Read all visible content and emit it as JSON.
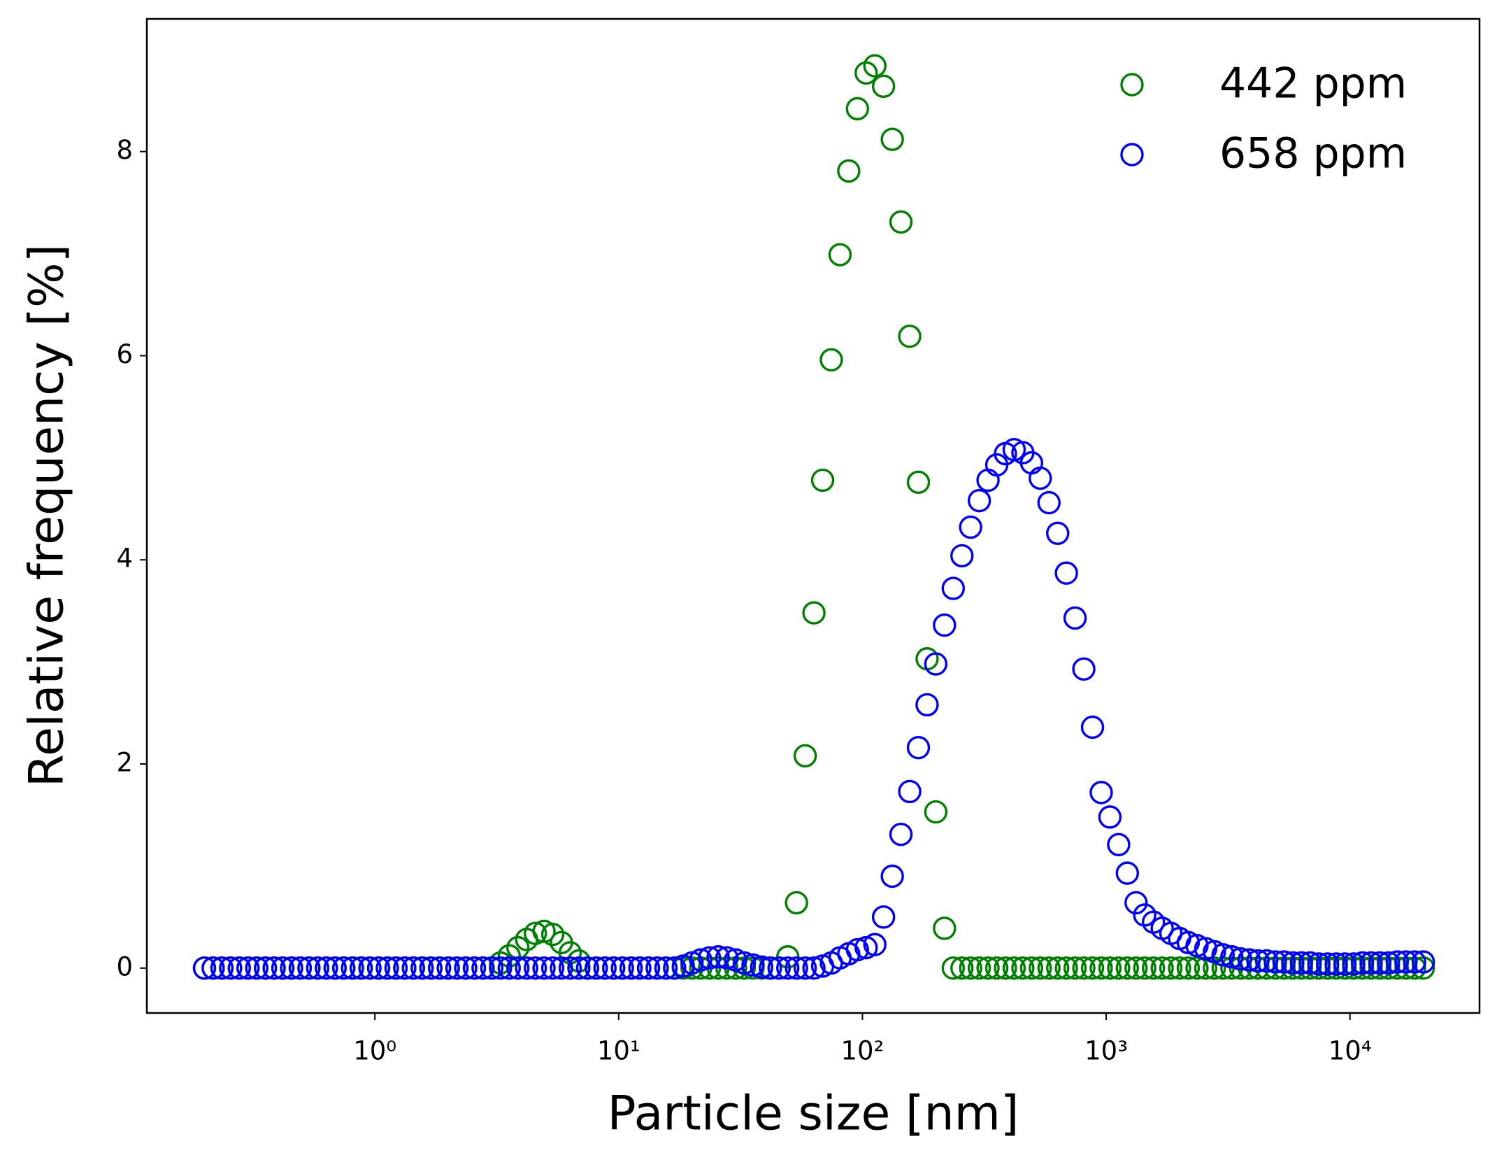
{
  "chart_data": {
    "type": "scatter",
    "xlabel": "Particle size [nm]",
    "ylabel": "Relative frequency [%]",
    "xscale": "log",
    "legend": "upper right",
    "xlim": [
      0.116,
      34000
    ],
    "ylim": [
      -0.44,
      9.3
    ],
    "xticks": [
      {
        "value": 1,
        "label": "10⁰"
      },
      {
        "value": 10,
        "label": "10¹"
      },
      {
        "value": 100,
        "label": "10²"
      },
      {
        "value": 1000,
        "label": "10³"
      },
      {
        "value": 10000,
        "label": "10⁴"
      }
    ],
    "yticks": [
      0,
      2,
      4,
      6,
      8
    ],
    "x": [
      0.2,
      0.2171,
      0.2358,
      0.256,
      0.2779,
      0.3017,
      0.3276,
      0.3557,
      0.3861,
      0.4192,
      0.4552,
      0.4942,
      0.5365,
      0.5825,
      0.6325,
      0.6867,
      0.7455,
      0.8094,
      0.8788,
      0.9541,
      1.036,
      1.125,
      1.221,
      1.326,
      1.439,
      1.563,
      1.697,
      1.842,
      2,
      2.171,
      2.358,
      2.56,
      2.779,
      3.017,
      3.276,
      3.557,
      3.861,
      4.192,
      4.552,
      4.942,
      5.365,
      5.825,
      6.325,
      6.867,
      7.455,
      8.094,
      8.788,
      9.541,
      10.36,
      11.25,
      12.21,
      13.26,
      14.39,
      15.63,
      16.97,
      18.42,
      20,
      21.71,
      23.58,
      25.6,
      27.79,
      30.17,
      32.76,
      35.57,
      38.61,
      41.92,
      45.52,
      49.42,
      53.65,
      58.25,
      63.25,
      68.67,
      74.55,
      80.94,
      87.88,
      95.41,
      103.6,
      112.5,
      122.1,
      132.6,
      143.9,
      156.3,
      169.7,
      184.2,
      200,
      217.1,
      235.8,
      256,
      277.9,
      301.7,
      327.6,
      355.7,
      386.1,
      419.2,
      455.2,
      494.2,
      536.5,
      582.5,
      632.5,
      686.7,
      745.5,
      809.4,
      878.8,
      954.1,
      1036,
      1125,
      1221,
      1326,
      1439,
      1563,
      1697,
      1842,
      2000,
      2171,
      2358,
      2560,
      2779,
      3017,
      3276,
      3557,
      3861,
      4192,
      4552,
      4942,
      5365,
      5825,
      6325,
      6867,
      7455,
      8094,
      8788,
      9541,
      10360,
      11250,
      12210,
      13260,
      14390,
      15630,
      16970,
      18420,
      20000
    ],
    "series": [
      {
        "name": "442 ppm",
        "color": "#008000",
        "values": [
          0,
          0,
          0,
          0,
          0,
          0,
          0,
          0,
          0,
          0,
          0,
          0,
          0,
          0,
          0,
          0,
          0,
          0,
          0,
          0,
          0,
          0,
          0,
          0,
          0,
          0,
          0,
          0,
          0,
          0,
          0,
          0,
          0,
          0,
          0.05,
          0.12,
          0.2,
          0.28,
          0.34,
          0.36,
          0.33,
          0.25,
          0.15,
          0.07,
          0,
          0,
          0,
          0,
          0,
          0,
          0,
          0,
          0,
          0,
          0,
          0,
          0,
          0,
          0,
          0,
          0,
          0,
          0,
          0,
          0,
          0,
          0,
          0.11,
          0.64,
          2.08,
          3.48,
          4.78,
          5.96,
          6.99,
          7.81,
          8.42,
          8.77,
          8.84,
          8.64,
          8.12,
          7.31,
          6.19,
          4.76,
          3.03,
          1.53,
          0.39,
          0,
          0,
          0,
          0,
          0,
          0,
          0,
          0,
          0,
          0,
          0,
          0,
          0,
          0,
          0,
          0,
          0,
          0,
          0,
          0,
          0,
          0,
          0,
          0,
          0,
          0,
          0,
          0,
          0,
          0,
          0,
          0,
          0,
          0,
          0,
          0,
          0,
          0,
          0,
          0,
          0,
          0,
          0,
          0,
          0,
          0,
          0,
          0,
          0,
          0,
          0,
          0,
          0,
          0,
          0
        ]
      },
      {
        "name": "658 ppm",
        "color": "#0000ff",
        "values": [
          0,
          0,
          0,
          0,
          0,
          0,
          0,
          0,
          0,
          0,
          0,
          0,
          0,
          0,
          0,
          0,
          0,
          0,
          0,
          0,
          0,
          0,
          0,
          0,
          0,
          0,
          0,
          0,
          0,
          0,
          0,
          0,
          0,
          0,
          0,
          0,
          0,
          0,
          0,
          0,
          0,
          0,
          0,
          0,
          0,
          0,
          0,
          0,
          0,
          0,
          0,
          0,
          0,
          0,
          0,
          0.02,
          0.05,
          0.08,
          0.1,
          0.11,
          0.1,
          0.08,
          0.05,
          0.03,
          0.01,
          0,
          0,
          0,
          0,
          0,
          0,
          0.02,
          0.05,
          0.1,
          0.14,
          0.18,
          0.2,
          0.23,
          0.5,
          0.9,
          1.31,
          1.73,
          2.16,
          2.58,
          2.98,
          3.36,
          3.72,
          4.04,
          4.32,
          4.58,
          4.78,
          4.93,
          5.04,
          5.08,
          5.05,
          4.95,
          4.8,
          4.56,
          4.26,
          3.87,
          3.43,
          2.93,
          2.36,
          1.72,
          1.48,
          1.21,
          0.93,
          0.64,
          0.52,
          0.45,
          0.39,
          0.34,
          0.29,
          0.25,
          0.22,
          0.19,
          0.16,
          0.13,
          0.11,
          0.09,
          0.08,
          0.07,
          0.07,
          0.06,
          0.06,
          0.05,
          0.05,
          0.05,
          0.04,
          0.04,
          0.04,
          0.04,
          0.04,
          0.05,
          0.05,
          0.05,
          0.05,
          0.06,
          0.06,
          0.06,
          0.06
        ]
      }
    ]
  }
}
